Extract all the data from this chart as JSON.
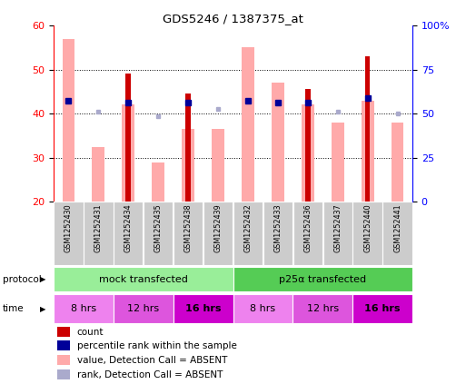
{
  "title": "GDS5246 / 1387375_at",
  "samples": [
    "GSM1252430",
    "GSM1252431",
    "GSM1252434",
    "GSM1252435",
    "GSM1252438",
    "GSM1252439",
    "GSM1252432",
    "GSM1252433",
    "GSM1252436",
    "GSM1252437",
    "GSM1252440",
    "GSM1252441"
  ],
  "pink_values": [
    57,
    32.5,
    42,
    29,
    36.5,
    36.5,
    55,
    47,
    42,
    38,
    43,
    38
  ],
  "red_values": [
    0,
    0,
    49,
    0,
    44.5,
    0,
    0,
    0,
    45.5,
    0,
    53,
    0
  ],
  "blue_values": [
    43,
    0,
    42.5,
    0,
    42.5,
    0,
    43,
    42.5,
    42.5,
    0,
    43.5,
    0
  ],
  "lightblue_values": [
    0,
    40.5,
    0,
    39.5,
    0,
    41,
    0,
    0,
    0,
    40.5,
    0,
    40
  ],
  "ylim_left": [
    20,
    60
  ],
  "yticks_left": [
    20,
    30,
    40,
    50,
    60
  ],
  "yticks_right": [
    0,
    25,
    50,
    75,
    100
  ],
  "ytick_labels_right": [
    "0",
    "25",
    "50",
    "75",
    "100%"
  ],
  "protocol_labels": [
    "mock transfected",
    "p25α transfected"
  ],
  "color_red": "#cc0000",
  "color_pink": "#ffaaaa",
  "color_blue": "#000099",
  "color_lightblue": "#aaaacc",
  "color_protocol_mock": "#99ee99",
  "color_protocol_p25": "#55cc55",
  "time_colors": [
    "#ee82ee",
    "#dd55dd",
    "#cc00cc",
    "#ee82ee",
    "#dd55dd",
    "#cc00cc"
  ],
  "time_labels": [
    "8 hrs",
    "12 hrs",
    "16 hrs",
    "8 hrs",
    "12 hrs",
    "16 hrs"
  ],
  "time_bold": [
    false,
    false,
    true,
    false,
    false,
    true
  ],
  "legend_items": [
    {
      "color": "#cc0000",
      "label": "count"
    },
    {
      "color": "#000099",
      "label": "percentile rank within the sample"
    },
    {
      "color": "#ffaaaa",
      "label": "value, Detection Call = ABSENT"
    },
    {
      "color": "#aaaacc",
      "label": "rank, Detection Call = ABSENT"
    }
  ]
}
